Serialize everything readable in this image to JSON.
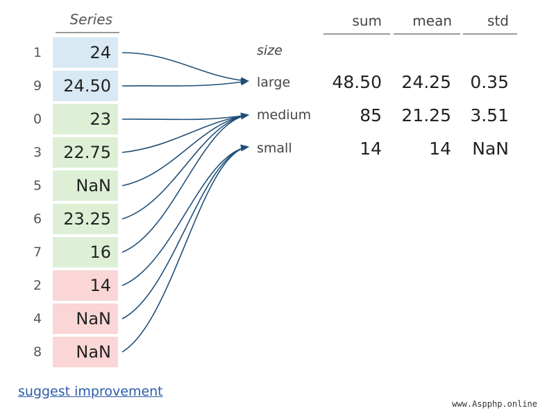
{
  "series_header": "Series",
  "series": [
    {
      "index": "1",
      "value": "24",
      "group": "large"
    },
    {
      "index": "9",
      "value": "24.50",
      "group": "large"
    },
    {
      "index": "0",
      "value": "23",
      "group": "medium"
    },
    {
      "index": "3",
      "value": "22.75",
      "group": "medium"
    },
    {
      "index": "5",
      "value": "NaN",
      "group": "medium"
    },
    {
      "index": "6",
      "value": "23.25",
      "group": "medium"
    },
    {
      "index": "7",
      "value": "16",
      "group": "medium"
    },
    {
      "index": "2",
      "value": "14",
      "group": "small"
    },
    {
      "index": "4",
      "value": "NaN",
      "group": "small"
    },
    {
      "index": "8",
      "value": "NaN",
      "group": "small"
    }
  ],
  "result": {
    "index_name": "size",
    "columns": [
      "sum",
      "mean",
      "std"
    ],
    "rows": [
      {
        "key": "large",
        "sum": "48.50",
        "mean": "24.25",
        "std": "0.35"
      },
      {
        "key": "medium",
        "sum": "85",
        "mean": "21.25",
        "std": "3.51"
      },
      {
        "key": "small",
        "sum": "14",
        "mean": "14",
        "std": "NaN"
      }
    ]
  },
  "colors": {
    "large": "#d9e9f4",
    "medium": "#ddf0d5",
    "small": "#fad6d6",
    "arrow": "#1f4e79"
  },
  "footer_link": "suggest improvement",
  "watermark": "www.Aspphp.online"
}
